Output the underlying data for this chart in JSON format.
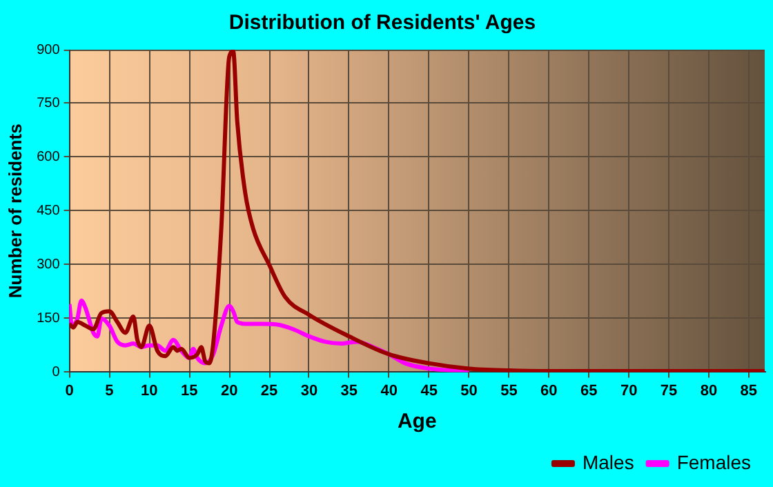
{
  "chart_data": {
    "type": "line",
    "title": "Distribution of Residents' Ages",
    "xlabel": "Age",
    "ylabel": "Number of residents",
    "xlim": [
      0,
      87
    ],
    "xticks": [
      0,
      5,
      10,
      15,
      20,
      25,
      30,
      35,
      40,
      45,
      50,
      55,
      60,
      65,
      70,
      75,
      80,
      85
    ],
    "ylim": [
      0,
      900
    ],
    "yticks": [
      0,
      150,
      300,
      450,
      600,
      750,
      900
    ],
    "grid": true,
    "legend": "bottom right",
    "marker": "none",
    "line_style": "solid",
    "series": [
      {
        "name": "Males",
        "color": "#990000",
        "x": [
          0,
          0.5,
          1,
          2,
          3,
          4,
          5,
          6,
          7,
          8,
          8.5,
          9,
          10,
          11,
          12,
          13,
          13.5,
          14,
          15,
          16,
          16.5,
          17,
          17.5,
          18,
          19,
          20,
          20.5,
          21,
          22,
          23,
          25,
          27,
          30,
          35,
          40,
          45,
          50,
          55,
          60,
          87
        ],
        "values": [
          135,
          125,
          140,
          130,
          120,
          165,
          170,
          140,
          110,
          155,
          90,
          70,
          130,
          60,
          45,
          70,
          60,
          65,
          40,
          50,
          70,
          30,
          25,
          80,
          400,
          880,
          895,
          700,
          500,
          400,
          300,
          210,
          160,
          100,
          50,
          25,
          10,
          5,
          3,
          3
        ]
      },
      {
        "name": "Females",
        "color": "#ff00ff",
        "x": [
          0,
          0.3,
          1,
          1.5,
          2,
          3,
          3.5,
          4,
          5,
          6,
          7,
          8,
          9,
          10,
          11,
          12,
          13,
          14,
          15,
          15.5,
          16,
          17,
          18,
          19,
          20,
          20.5,
          21,
          22,
          24,
          26,
          28,
          30,
          32,
          34,
          36,
          38,
          40,
          42,
          45,
          50
        ],
        "values": [
          190,
          130,
          150,
          200,
          180,
          110,
          100,
          150,
          130,
          85,
          75,
          80,
          70,
          75,
          75,
          60,
          90,
          60,
          40,
          65,
          40,
          25,
          50,
          130,
          185,
          170,
          140,
          135,
          135,
          133,
          120,
          100,
          85,
          80,
          85,
          70,
          50,
          25,
          10,
          3
        ]
      }
    ]
  }
}
